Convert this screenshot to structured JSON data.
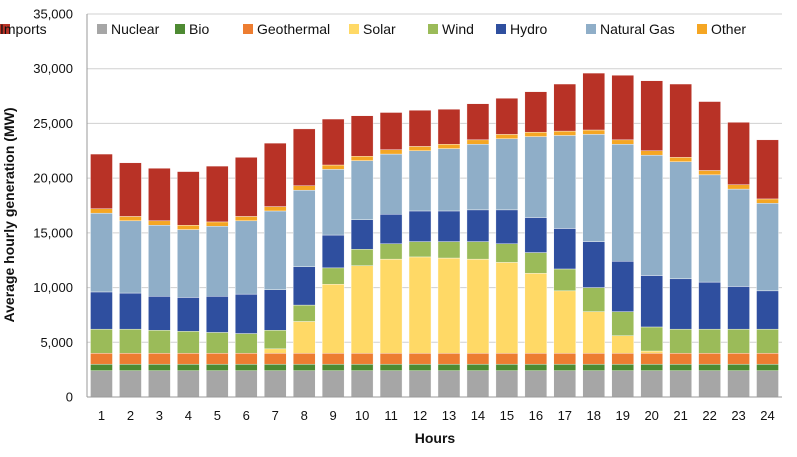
{
  "chart_data": {
    "type": "bar",
    "stacked": true,
    "title": "",
    "xlabel": "Hours",
    "ylabel": "Average hourly generation (MW)",
    "ylim": [
      0,
      35000
    ],
    "y_ticks": [
      0,
      5000,
      10000,
      15000,
      20000,
      25000,
      30000,
      35000
    ],
    "y_tick_labels": [
      "0",
      "5,000",
      "10,000",
      "15,000",
      "20,000",
      "25,000",
      "30,000",
      "35,000"
    ],
    "grid": true,
    "legend_position": "top",
    "categories": [
      "1",
      "2",
      "3",
      "4",
      "5",
      "6",
      "7",
      "8",
      "9",
      "10",
      "11",
      "12",
      "13",
      "14",
      "15",
      "16",
      "17",
      "18",
      "19",
      "20",
      "21",
      "22",
      "23",
      "24"
    ],
    "series": [
      {
        "name": "Nuclear",
        "color": "#a6a6a6",
        "values": [
          2400,
          2400,
          2400,
          2400,
          2400,
          2400,
          2400,
          2400,
          2400,
          2400,
          2400,
          2400,
          2400,
          2400,
          2400,
          2400,
          2400,
          2400,
          2400,
          2400,
          2400,
          2400,
          2400,
          2400
        ]
      },
      {
        "name": "Bio",
        "color": "#4e8a32",
        "values": [
          600,
          600,
          600,
          600,
          600,
          600,
          600,
          600,
          600,
          600,
          600,
          600,
          600,
          600,
          600,
          600,
          600,
          600,
          600,
          600,
          600,
          600,
          600,
          600
        ]
      },
      {
        "name": "Geothermal",
        "color": "#ed7d31",
        "values": [
          1000,
          1000,
          1000,
          1000,
          1000,
          1000,
          1000,
          1000,
          1000,
          1000,
          1000,
          1000,
          1000,
          1000,
          1000,
          1000,
          1000,
          1000,
          1000,
          1000,
          1000,
          1000,
          1000,
          1000
        ]
      },
      {
        "name": "Solar",
        "color": "#ffd966",
        "values": [
          0,
          0,
          0,
          0,
          0,
          0,
          400,
          2900,
          6300,
          8000,
          8600,
          8800,
          8700,
          8600,
          8300,
          7300,
          5700,
          3800,
          1600,
          200,
          0,
          0,
          0,
          0
        ]
      },
      {
        "name": "Wind",
        "color": "#9bbb59",
        "values": [
          2200,
          2200,
          2100,
          2000,
          1900,
          1800,
          1700,
          1500,
          1500,
          1500,
          1400,
          1400,
          1500,
          1600,
          1700,
          1900,
          2000,
          2200,
          2200,
          2200,
          2200,
          2200,
          2200,
          2200
        ]
      },
      {
        "name": "Hydro",
        "color": "#2f4f9f",
        "values": [
          3400,
          3300,
          3100,
          3100,
          3300,
          3600,
          3700,
          3500,
          3000,
          2700,
          2700,
          2800,
          2800,
          2900,
          3100,
          3200,
          3700,
          4200,
          4600,
          4700,
          4600,
          4300,
          3900,
          3500
        ]
      },
      {
        "name": "Natural Gas",
        "color": "#8faec8",
        "values": [
          7200,
          6600,
          6500,
          6200,
          6400,
          6700,
          7200,
          7000,
          6000,
          5400,
          5500,
          5500,
          5700,
          6000,
          6500,
          7400,
          8500,
          9800,
          10700,
          11000,
          10700,
          9800,
          8900,
          8000
        ]
      },
      {
        "name": "Other",
        "color": "#f5a623",
        "values": [
          400,
          400,
          400,
          400,
          400,
          400,
          400,
          400,
          400,
          400,
          400,
          400,
          400,
          400,
          400,
          400,
          400,
          400,
          400,
          400,
          400,
          400,
          400,
          400
        ]
      },
      {
        "name": "Imports",
        "color": "#b83226",
        "values": [
          5000,
          4900,
          4800,
          4900,
          5100,
          5400,
          5800,
          5200,
          4200,
          3700,
          3400,
          3300,
          3200,
          3300,
          3300,
          3700,
          4300,
          5200,
          5900,
          6400,
          6700,
          6300,
          5700,
          5400
        ]
      }
    ]
  }
}
